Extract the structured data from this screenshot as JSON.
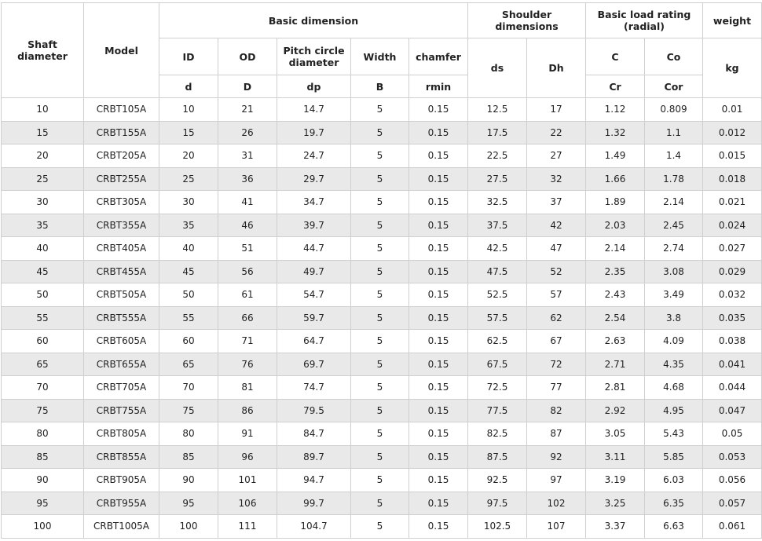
{
  "table": {
    "header": {
      "shaft_diameter": "Shaft diameter",
      "model": "Model",
      "basic_dimension": "Basic dimension",
      "shoulder_dimensions": "Shoulder dimensions",
      "basic_load_rating": "Basic load rating (radial)",
      "weight": "weight",
      "sub": [
        "ID",
        "OD",
        "Pitch circle diameter",
        "Width",
        "chamfer",
        "ds",
        "Dh",
        "C",
        "Co",
        "kg"
      ],
      "symbols": [
        "d",
        "D",
        "dp",
        "B",
        "rmin",
        "Cr",
        "Cor"
      ]
    },
    "rows": [
      [
        "10",
        "CRBT105A",
        "10",
        "21",
        "14.7",
        "5",
        "0.15",
        "12.5",
        "17",
        "1.12",
        "0.809",
        "0.01"
      ],
      [
        "15",
        "CRBT155A",
        "15",
        "26",
        "19.7",
        "5",
        "0.15",
        "17.5",
        "22",
        "1.32",
        "1.1",
        "0.012"
      ],
      [
        "20",
        "CRBT205A",
        "20",
        "31",
        "24.7",
        "5",
        "0.15",
        "22.5",
        "27",
        "1.49",
        "1.4",
        "0.015"
      ],
      [
        "25",
        "CRBT255A",
        "25",
        "36",
        "29.7",
        "5",
        "0.15",
        "27.5",
        "32",
        "1.66",
        "1.78",
        "0.018"
      ],
      [
        "30",
        "CRBT305A",
        "30",
        "41",
        "34.7",
        "5",
        "0.15",
        "32.5",
        "37",
        "1.89",
        "2.14",
        "0.021"
      ],
      [
        "35",
        "CRBT355A",
        "35",
        "46",
        "39.7",
        "5",
        "0.15",
        "37.5",
        "42",
        "2.03",
        "2.45",
        "0.024"
      ],
      [
        "40",
        "CRBT405A",
        "40",
        "51",
        "44.7",
        "5",
        "0.15",
        "42.5",
        "47",
        "2.14",
        "2.74",
        "0.027"
      ],
      [
        "45",
        "CRBT455A",
        "45",
        "56",
        "49.7",
        "5",
        "0.15",
        "47.5",
        "52",
        "2.35",
        "3.08",
        "0.029"
      ],
      [
        "50",
        "CRBT505A",
        "50",
        "61",
        "54.7",
        "5",
        "0.15",
        "52.5",
        "57",
        "2.43",
        "3.49",
        "0.032"
      ],
      [
        "55",
        "CRBT555A",
        "55",
        "66",
        "59.7",
        "5",
        "0.15",
        "57.5",
        "62",
        "2.54",
        "3.8",
        "0.035"
      ],
      [
        "60",
        "CRBT605A",
        "60",
        "71",
        "64.7",
        "5",
        "0.15",
        "62.5",
        "67",
        "2.63",
        "4.09",
        "0.038"
      ],
      [
        "65",
        "CRBT655A",
        "65",
        "76",
        "69.7",
        "5",
        "0.15",
        "67.5",
        "72",
        "2.71",
        "4.35",
        "0.041"
      ],
      [
        "70",
        "CRBT705A",
        "70",
        "81",
        "74.7",
        "5",
        "0.15",
        "72.5",
        "77",
        "2.81",
        "4.68",
        "0.044"
      ],
      [
        "75",
        "CRBT755A",
        "75",
        "86",
        "79.5",
        "5",
        "0.15",
        "77.5",
        "82",
        "2.92",
        "4.95",
        "0.047"
      ],
      [
        "80",
        "CRBT805A",
        "80",
        "91",
        "84.7",
        "5",
        "0.15",
        "82.5",
        "87",
        "3.05",
        "5.43",
        "0.05"
      ],
      [
        "85",
        "CRBT855A",
        "85",
        "96",
        "89.7",
        "5",
        "0.15",
        "87.5",
        "92",
        "3.11",
        "5.85",
        "0.053"
      ],
      [
        "90",
        "CRBT905A",
        "90",
        "101",
        "94.7",
        "5",
        "0.15",
        "92.5",
        "97",
        "3.19",
        "6.03",
        "0.056"
      ],
      [
        "95",
        "CRBT955A",
        "95",
        "106",
        "99.7",
        "5",
        "0.15",
        "97.5",
        "102",
        "3.25",
        "6.35",
        "0.057"
      ],
      [
        "100",
        "CRBT1005A",
        "100",
        "111",
        "104.7",
        "5",
        "0.15",
        "102.5",
        "107",
        "3.37",
        "6.63",
        "0.061"
      ]
    ]
  }
}
